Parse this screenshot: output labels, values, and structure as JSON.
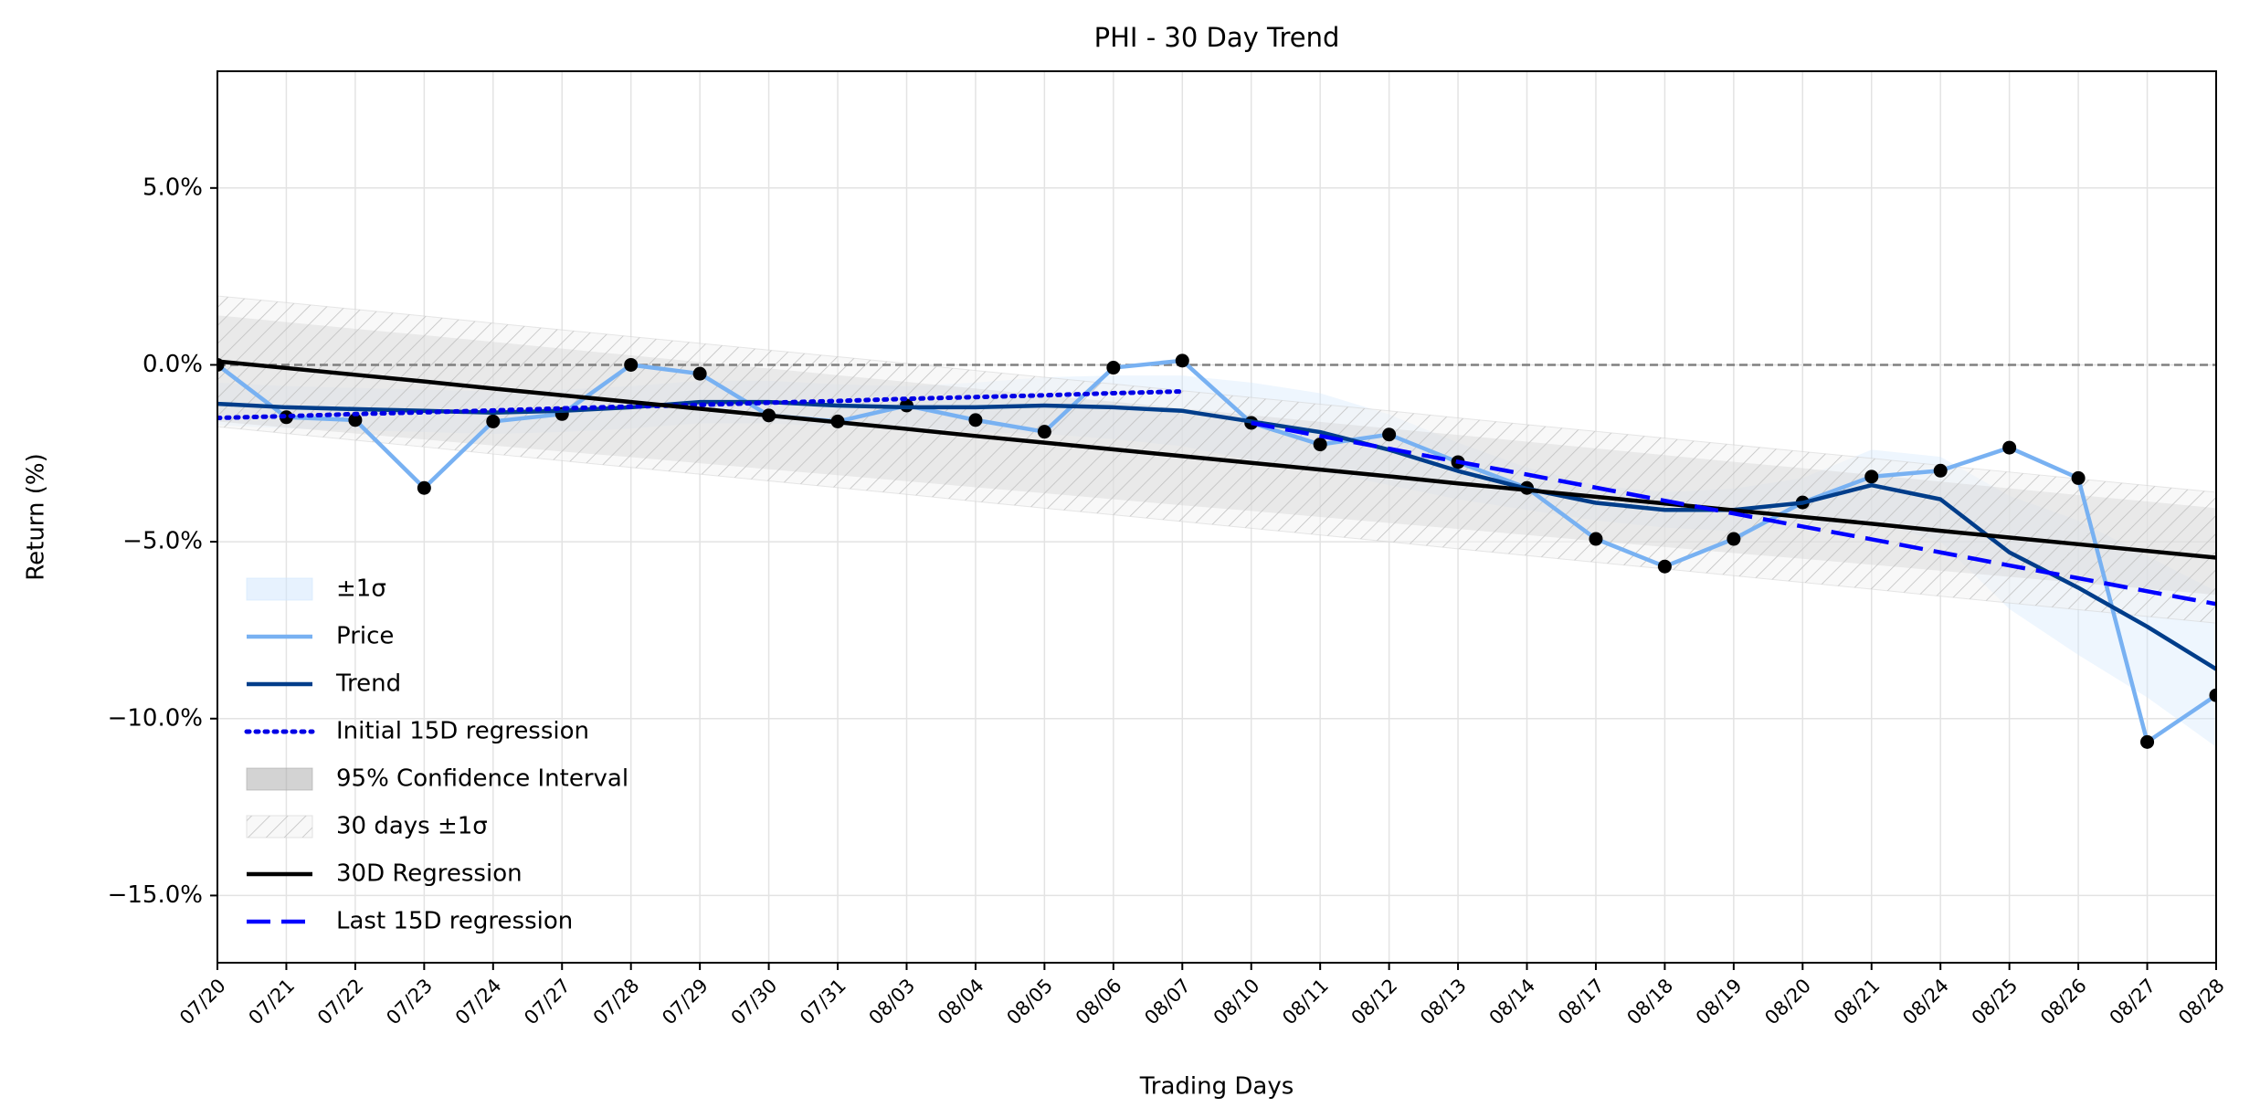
{
  "chart_data": {
    "type": "line",
    "title": "PHI - 30 Day Trend",
    "xlabel": "Trading Days",
    "ylabel": "Return (%)",
    "categories": [
      "07/20",
      "07/21",
      "07/22",
      "07/23",
      "07/24",
      "07/27",
      "07/28",
      "07/29",
      "07/30",
      "07/31",
      "08/03",
      "08/04",
      "08/05",
      "08/06",
      "08/07",
      "08/10",
      "08/11",
      "08/12",
      "08/13",
      "08/14",
      "08/17",
      "08/18",
      "08/19",
      "08/20",
      "08/21",
      "08/24",
      "08/25",
      "08/26",
      "08/27",
      "08/28"
    ],
    "ylim": [
      -16.9,
      8.3
    ],
    "yticks": [
      {
        "value": -15,
        "label": "−15.0%"
      },
      {
        "value": -10,
        "label": "−10.0%"
      },
      {
        "value": -5,
        "label": "−5.0%"
      },
      {
        "value": 0,
        "label": "0.0%"
      },
      {
        "value": 5,
        "label": "5.0%"
      }
    ],
    "grid": true,
    "hline": 0,
    "legend": "lower left",
    "series": [
      {
        "name": "±1σ",
        "type": "band",
        "color": "#cfe6fd",
        "upper": [
          -0.5,
          -0.6,
          -0.65,
          -0.7,
          -0.75,
          -0.7,
          -0.6,
          -0.45,
          -0.45,
          -0.55,
          -0.6,
          -0.5,
          -0.35,
          -0.3,
          -0.3,
          -0.5,
          -0.8,
          -1.4,
          -2.2,
          -2.9,
          -3.4,
          -3.6,
          -3.5,
          -3.2,
          -2.4,
          -2.6,
          -3.7,
          -4.4,
          -5.4,
          -6.4
        ],
        "lower": [
          -1.7,
          -1.8,
          -1.85,
          -1.9,
          -1.95,
          -1.9,
          -1.8,
          -1.65,
          -1.65,
          -1.75,
          -1.8,
          -1.9,
          -1.95,
          -2.1,
          -2.3,
          -2.7,
          -3.0,
          -3.4,
          -3.8,
          -4.1,
          -4.4,
          -4.6,
          -4.7,
          -4.6,
          -4.4,
          -5.0,
          -6.9,
          -8.2,
          -9.4,
          -10.8
        ]
      },
      {
        "name": "Price",
        "type": "line",
        "style": "solid",
        "color": "#78b1f2",
        "markers": true,
        "marker_color": "#000000",
        "values": [
          0.0,
          -1.48,
          -1.56,
          -3.48,
          -1.6,
          -1.39,
          0.0,
          -0.25,
          -1.43,
          -1.6,
          -1.15,
          -1.56,
          -1.89,
          -0.08,
          0.12,
          -1.64,
          -2.25,
          -1.97,
          -2.75,
          -3.48,
          -4.92,
          -5.7,
          -4.92,
          -3.89,
          -3.16,
          -2.99,
          -2.34,
          -3.2,
          -10.66,
          -9.34
        ]
      },
      {
        "name": "Trend",
        "type": "line",
        "style": "solid",
        "color": "#003d8a",
        "values": [
          -1.1,
          -1.2,
          -1.25,
          -1.3,
          -1.35,
          -1.3,
          -1.2,
          -1.05,
          -1.05,
          -1.15,
          -1.2,
          -1.2,
          -1.15,
          -1.2,
          -1.3,
          -1.6,
          -1.9,
          -2.4,
          -3.0,
          -3.5,
          -3.9,
          -4.1,
          -4.1,
          -3.9,
          -3.4,
          -3.8,
          -5.3,
          -6.3,
          -7.4,
          -8.6
        ]
      },
      {
        "name": "Initial 15D regression",
        "type": "line",
        "style": "dotted",
        "color": "#0000e6",
        "values": [
          -1.5,
          -1.45,
          -1.39,
          -1.34,
          -1.29,
          -1.23,
          -1.18,
          -1.13,
          -1.07,
          -1.02,
          -0.96,
          -0.91,
          -0.86,
          -0.8,
          -0.75,
          null,
          null,
          null,
          null,
          null,
          null,
          null,
          null,
          null,
          null,
          null,
          null,
          null,
          null,
          null
        ]
      },
      {
        "name": "95% Confidence Interval",
        "type": "band",
        "color": "#a8a8a8",
        "upper": [
          1.4,
          1.21,
          1.02,
          0.84,
          0.65,
          0.46,
          0.27,
          0.08,
          -0.1,
          -0.29,
          -0.48,
          -0.67,
          -0.86,
          -1.04,
          -1.23,
          -1.42,
          -1.61,
          -1.8,
          -1.98,
          -2.17,
          -2.36,
          -2.55,
          -2.74,
          -2.92,
          -3.11,
          -3.3,
          -3.49,
          -3.68,
          -3.86,
          -4.05
        ],
        "lower": [
          -1.6,
          -1.77,
          -1.94,
          -2.11,
          -2.28,
          -2.45,
          -2.61,
          -2.78,
          -2.95,
          -3.12,
          -3.29,
          -3.46,
          -3.63,
          -3.8,
          -3.97,
          -4.13,
          -4.3,
          -4.47,
          -4.64,
          -4.81,
          -4.98,
          -5.15,
          -5.32,
          -5.48,
          -5.65,
          -5.82,
          -5.99,
          -6.16,
          -6.33,
          -6.5
        ]
      },
      {
        "name": "30 days ±1σ",
        "type": "band",
        "color": "#d0d0d0",
        "hatch": true,
        "upper": [
          1.95,
          1.76,
          1.57,
          1.38,
          1.18,
          0.99,
          0.8,
          0.61,
          0.42,
          0.23,
          0.04,
          -0.16,
          -0.35,
          -0.54,
          -0.73,
          -0.92,
          -1.11,
          -1.3,
          -1.5,
          -1.69,
          -1.88,
          -2.07,
          -2.26,
          -2.45,
          -2.64,
          -2.84,
          -3.03,
          -3.22,
          -3.41,
          -3.6
        ],
        "lower": [
          -1.75,
          -1.94,
          -2.13,
          -2.32,
          -2.52,
          -2.71,
          -2.9,
          -3.09,
          -3.28,
          -3.47,
          -3.66,
          -3.86,
          -4.05,
          -4.24,
          -4.43,
          -4.62,
          -4.81,
          -5.0,
          -5.2,
          -5.39,
          -5.58,
          -5.77,
          -5.96,
          -6.15,
          -6.34,
          -6.54,
          -6.73,
          -6.92,
          -7.11,
          -7.3
        ]
      },
      {
        "name": "30D Regression",
        "type": "line",
        "style": "solid",
        "color": "#000000",
        "values": [
          0.1,
          -0.09,
          -0.28,
          -0.47,
          -0.67,
          -0.86,
          -1.05,
          -1.24,
          -1.43,
          -1.62,
          -1.81,
          -2.01,
          -2.2,
          -2.39,
          -2.58,
          -2.77,
          -2.96,
          -3.15,
          -3.35,
          -3.54,
          -3.73,
          -3.92,
          -4.11,
          -4.3,
          -4.49,
          -4.69,
          -4.88,
          -5.07,
          -5.26,
          -5.45
        ]
      },
      {
        "name": "Last 15D regression",
        "type": "line",
        "style": "dashed",
        "color": "#0000ff",
        "values": [
          null,
          null,
          null,
          null,
          null,
          null,
          null,
          null,
          null,
          null,
          null,
          null,
          null,
          null,
          null,
          -1.64,
          -2.01,
          -2.37,
          -2.74,
          -3.1,
          -3.47,
          -3.84,
          -4.2,
          -4.57,
          -4.93,
          -5.3,
          -5.67,
          -6.03,
          -6.4,
          -6.76
        ]
      }
    ]
  }
}
